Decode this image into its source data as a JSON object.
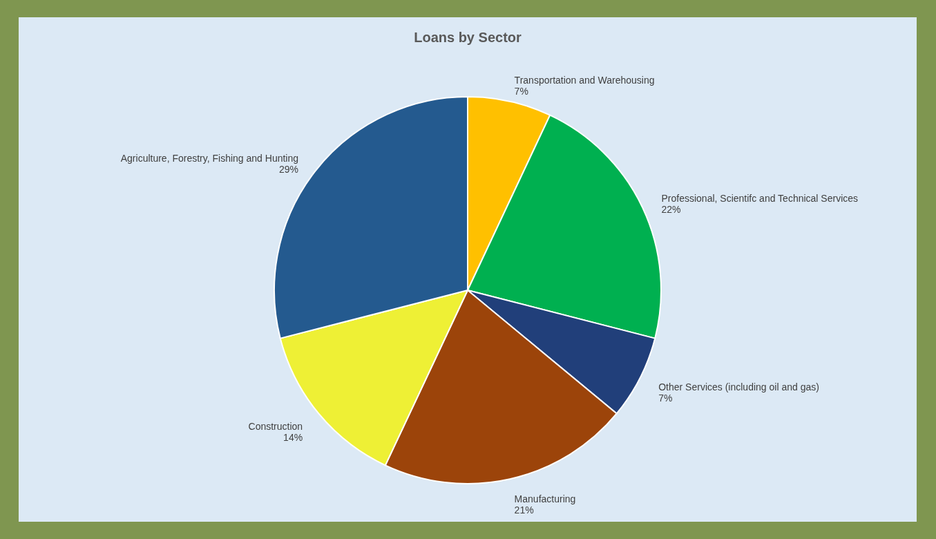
{
  "chart_data": {
    "type": "pie",
    "title": "Loans by Sector",
    "categories": [
      "Transportation and Warehousing",
      "Professional, Scientifc and Technical Services",
      "Other Services (including oil and gas)",
      "Manufacturing",
      "Construction",
      "Agriculture, Forestry, Fishing and Hunting"
    ],
    "values": [
      7,
      22,
      7,
      21,
      14,
      29
    ],
    "value_labels": [
      "7%",
      "22%",
      "7%",
      "21%",
      "14%",
      "29%"
    ],
    "colors": [
      "#ffc000",
      "#00b050",
      "#213f7a",
      "#9c440a",
      "#eef035",
      "#245a8f"
    ],
    "legend": false
  }
}
